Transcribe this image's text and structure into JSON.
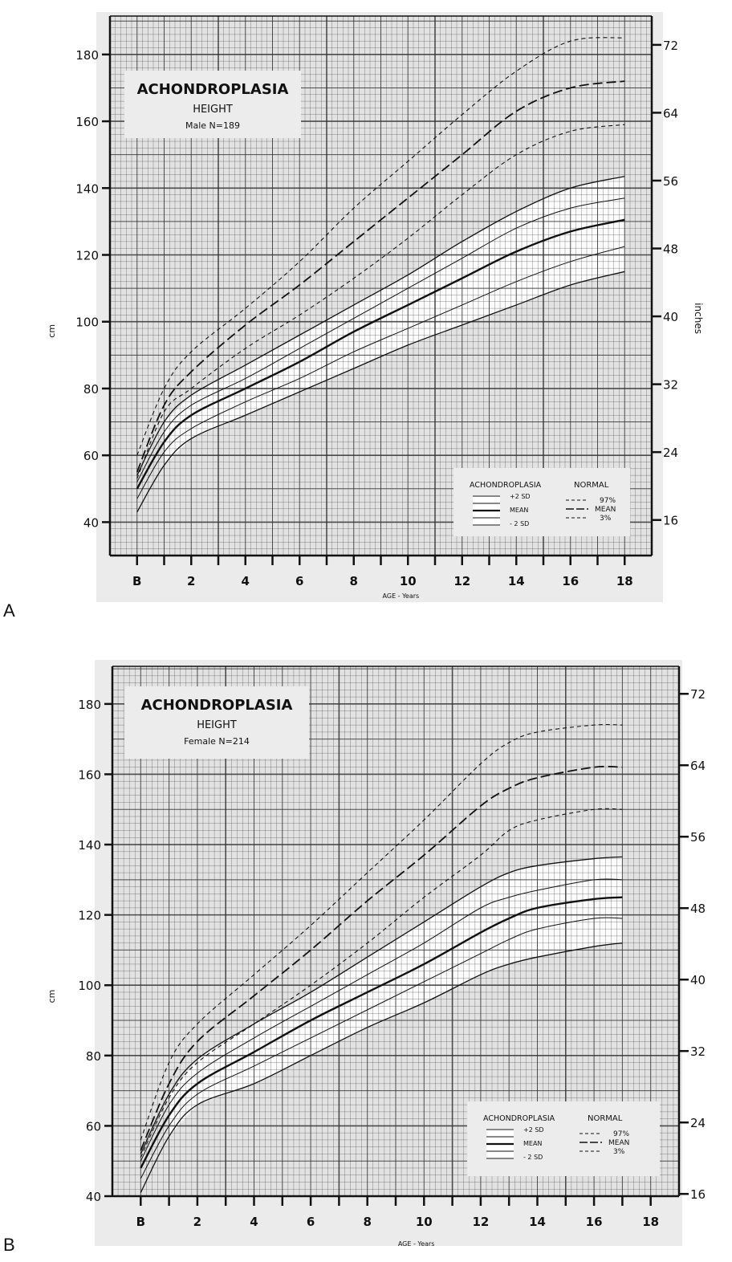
{
  "panels": [
    "A",
    "B"
  ],
  "chart_data": [
    {
      "type": "line",
      "panel": "A",
      "title": "ACHONDROPLASIA",
      "subtitle": "HEIGHT",
      "group": "Male N=189",
      "xlabel": "AGE - Years",
      "ylabel": "cm",
      "y2label": "inches",
      "xlim": [
        -1,
        19
      ],
      "ylim": [
        30,
        191.5
      ],
      "grid": true,
      "x_ticks": [
        0,
        2,
        4,
        6,
        8,
        10,
        12,
        14,
        16,
        18
      ],
      "x_tick_labels": [
        "B",
        "2",
        "4",
        "6",
        "8",
        "10",
        "12",
        "14",
        "16",
        "18"
      ],
      "y_ticks": [
        40,
        60,
        80,
        100,
        120,
        140,
        160,
        180
      ],
      "y_tick_labels": [
        "40",
        "60",
        "80",
        "100",
        "120",
        "140",
        "160",
        "180"
      ],
      "y2_ticks_inches": [
        16,
        24,
        32,
        40,
        48,
        56,
        64,
        72
      ],
      "y2_tick_labels": [
        "16",
        "24",
        "32",
        "40",
        "48",
        "56",
        "64",
        "72"
      ],
      "legend": {
        "placement": "bottom-right",
        "left_title": "ACHONDROPLASIA",
        "right_title": "NORMAL",
        "left_items": [
          "+2 SD",
          "MEAN",
          "- 2 SD"
        ],
        "right_items": [
          "97%",
          "MEAN",
          "3%"
        ]
      },
      "x": [
        0,
        1,
        2,
        4,
        6,
        8,
        10,
        12,
        14,
        16,
        18
      ],
      "series": [
        {
          "group": "normal",
          "style": "short-dash",
          "name": "97%",
          "values": [
            60,
            80,
            91,
            104,
            118,
            134,
            148,
            162,
            175,
            184,
            185
          ]
        },
        {
          "group": "normal",
          "style": "long-dash",
          "name": "MEAN",
          "values": [
            55,
            75,
            85,
            99,
            111,
            124,
            137,
            150,
            163,
            170,
            172
          ]
        },
        {
          "group": "normal",
          "style": "short-dash",
          "name": "3%",
          "values": [
            53,
            73,
            80,
            92,
            102,
            113,
            125,
            138,
            150,
            157,
            159
          ]
        },
        {
          "group": "achondroplasia",
          "style": "solid",
          "name": "+2 SD",
          "values": [
            54,
            70,
            78,
            87,
            96,
            105,
            114,
            124,
            133,
            140,
            143.5
          ]
        },
        {
          "group": "achondroplasia",
          "style": "thin",
          "values": [
            52,
            67,
            75,
            83,
            92,
            101,
            110,
            119,
            128,
            134,
            137
          ]
        },
        {
          "group": "achondroplasia",
          "style": "bold",
          "name": "MEAN",
          "values": [
            50,
            64,
            72,
            80,
            88,
            97,
            105,
            113,
            121,
            127,
            130.5
          ]
        },
        {
          "group": "achondroplasia",
          "style": "thin",
          "values": [
            47,
            61,
            68,
            76,
            83,
            91,
            98,
            105,
            112,
            118,
            122.5
          ]
        },
        {
          "group": "achondroplasia",
          "style": "solid",
          "name": "- 2 SD",
          "values": [
            43,
            57,
            65,
            72,
            79,
            86,
            93,
            99,
            105,
            111,
            115
          ]
        }
      ]
    },
    {
      "type": "line",
      "panel": "B",
      "title": "ACHONDROPLASIA",
      "subtitle": "HEIGHT",
      "group": "Female N=214",
      "xlabel": "AGE - Years",
      "ylabel": "cm",
      "xlim": [
        -1,
        19
      ],
      "ylim": [
        40,
        190.7
      ],
      "grid": true,
      "x_ticks": [
        0,
        2,
        4,
        6,
        8,
        10,
        12,
        14,
        16,
        18
      ],
      "x_tick_labels": [
        "B",
        "2",
        "4",
        "6",
        "8",
        "10",
        "12",
        "14",
        "16",
        "18"
      ],
      "y_ticks": [
        40,
        60,
        80,
        100,
        120,
        140,
        160,
        180
      ],
      "y_tick_labels": [
        "40",
        "60",
        "80",
        "100",
        "120",
        "140",
        "160",
        "180"
      ],
      "y2_ticks_inches": [
        16,
        24,
        32,
        40,
        48,
        56,
        64,
        72
      ],
      "y2_tick_labels": [
        "16",
        "24",
        "32",
        "40",
        "48",
        "56",
        "64",
        "72"
      ],
      "legend": {
        "placement": "bottom-right",
        "left_title": "ACHONDROPLASIA",
        "right_title": "NORMAL",
        "left_items": [
          "+2 SD",
          "MEAN",
          "- 2 SD"
        ],
        "right_items": [
          "97%",
          "MEAN",
          "3%"
        ]
      },
      "x": [
        0,
        1,
        2,
        4,
        6,
        8,
        10,
        12,
        13,
        14,
        16,
        17
      ],
      "series": [
        {
          "group": "normal",
          "style": "short-dash",
          "name": "97%",
          "values": [
            56,
            78,
            89,
            103,
            117,
            132,
            147,
            163,
            169,
            172,
            174,
            174
          ]
        },
        {
          "group": "normal",
          "style": "long-dash",
          "name": "MEAN",
          "values": [
            53,
            72,
            84,
            97,
            110,
            124,
            137,
            151,
            156,
            159,
            162,
            162
          ]
        },
        {
          "group": "normal",
          "style": "short-dash",
          "name": "3%",
          "values": [
            51,
            68,
            78,
            89,
            100,
            112,
            125,
            137,
            144,
            147,
            150,
            150
          ]
        },
        {
          "group": "achondroplasia",
          "style": "solid",
          "name": "+2 SD",
          "values": [
            52,
            69,
            79,
            89,
            98,
            108,
            118,
            128,
            132,
            134,
            136,
            136.5
          ]
        },
        {
          "group": "achondroplasia",
          "style": "thin",
          "values": [
            50,
            66,
            75,
            85,
            94,
            103,
            112,
            122,
            125,
            127,
            130,
            130
          ]
        },
        {
          "group": "achondroplasia",
          "style": "bold",
          "name": "MEAN",
          "values": [
            48,
            63,
            72,
            81,
            90,
            98,
            106,
            115,
            119,
            122,
            124.5,
            125
          ]
        },
        {
          "group": "achondroplasia",
          "style": "thin",
          "values": [
            45,
            60,
            69,
            77,
            85,
            93,
            101,
            109,
            113,
            116,
            119,
            119
          ]
        },
        {
          "group": "achondroplasia",
          "style": "solid",
          "name": "- 2 SD",
          "values": [
            41,
            57,
            66,
            72,
            80,
            88,
            95,
            103,
            106,
            108,
            111,
            112
          ]
        }
      ]
    }
  ]
}
